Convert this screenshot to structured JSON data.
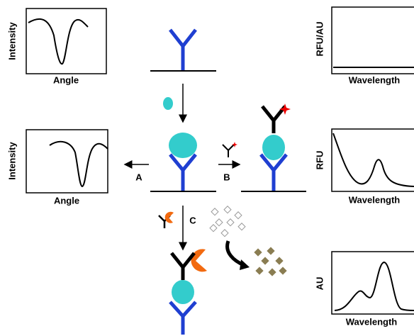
{
  "panels": [
    {
      "y_label": "Intensity",
      "x_label": "Angle"
    },
    {
      "y_label": "Intensity",
      "x_label": "Angle"
    },
    {
      "y_label": "RFU/AU",
      "x_label": "Wavelength"
    },
    {
      "y_label": "RFU",
      "x_label": "Wavelength"
    },
    {
      "y_label": "AU",
      "x_label": "Wavelength"
    }
  ],
  "steps": [
    {
      "label": "A"
    },
    {
      "label": "B"
    },
    {
      "label": "C"
    }
  ]
}
